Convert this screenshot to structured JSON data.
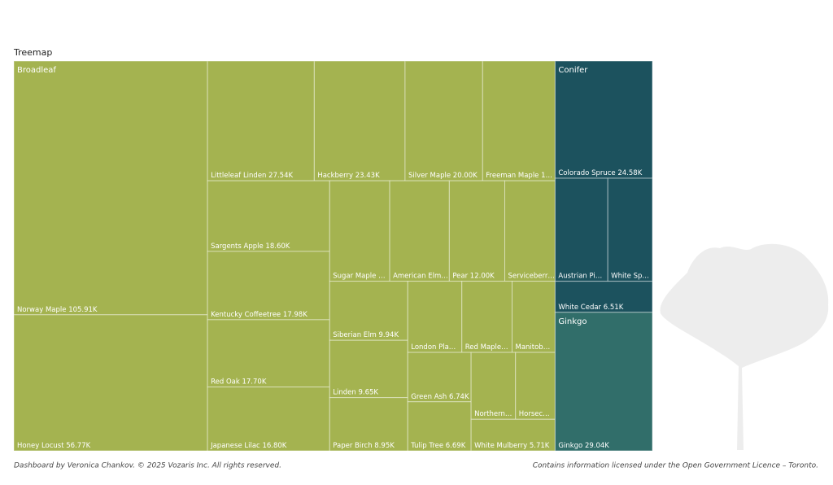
{
  "chart_data": {
    "type": "treemap",
    "title": "Treemap",
    "groups": [
      {
        "name": "Broadleaf",
        "color": "#a4b350",
        "children": [
          {
            "name": "Norway Maple",
            "value": 105910,
            "value_label": "105.91K"
          },
          {
            "name": "Honey Locust",
            "value": 56770,
            "value_label": "56.77K"
          },
          {
            "name": "Littleleaf Linden",
            "value": 27540,
            "value_label": "27.54K"
          },
          {
            "name": "Hackberry",
            "value": 23430,
            "value_label": "23.43K"
          },
          {
            "name": "Silver Maple",
            "value": 20000,
            "value_label": "20.00K"
          },
          {
            "name": "Freeman Maple 1…",
            "value": 18700
          },
          {
            "name": "Sargents Apple",
            "value": 18600,
            "value_label": "18.60K"
          },
          {
            "name": "Kentucky Coffeetree",
            "value": 17980,
            "value_label": "17.98K"
          },
          {
            "name": "Red Oak",
            "value": 17700,
            "value_label": "17.70K"
          },
          {
            "name": "Japanese Lilac",
            "value": 16800,
            "value_label": "16.80K"
          },
          {
            "name": "Sugar Maple …",
            "value": 13000
          },
          {
            "name": "American Elm…",
            "value": 12900
          },
          {
            "name": "Pear",
            "value": 12000,
            "value_label": "12.00K"
          },
          {
            "name": "Serviceberr…",
            "value": 10900
          },
          {
            "name": "Siberian Elm",
            "value": 9940,
            "value_label": "9.94K"
          },
          {
            "name": "Linden",
            "value": 9650,
            "value_label": "9.65K"
          },
          {
            "name": "Paper Birch",
            "value": 8950,
            "value_label": "8.95K"
          },
          {
            "name": "London Pla…",
            "value": 8300
          },
          {
            "name": "Red Maple…",
            "value": 7700
          },
          {
            "name": "Manitob…",
            "value": 6600
          },
          {
            "name": "Green Ash",
            "value": 6740,
            "value_label": "6.74K"
          },
          {
            "name": "Tulip Tree",
            "value": 6690,
            "value_label": "6.69K"
          },
          {
            "name": "Northern…",
            "value": 6400
          },
          {
            "name": "Horsec…",
            "value": 5700
          },
          {
            "name": "White Mulberry",
            "value": 5710,
            "value_label": "5.71K"
          }
        ]
      },
      {
        "name": "Conifer",
        "color": "#1c525e",
        "children": [
          {
            "name": "Colorado Spruce",
            "value": 24580,
            "value_label": "24.58K"
          },
          {
            "name": "Austrian Pi…",
            "value": 11700
          },
          {
            "name": "White Sp…",
            "value": 9900
          },
          {
            "name": "White Cedar",
            "value": 6510,
            "value_label": "6.51K"
          }
        ]
      },
      {
        "name": "Ginkgo",
        "color": "#316e6a",
        "children": [
          {
            "name": "Ginkgo",
            "value": 29040,
            "value_label": "29.04K"
          }
        ]
      }
    ]
  },
  "footer_left": "Dashboard by Veronica Chankov. © 2025 Vozaris Inc. All rights reserved.",
  "footer_right": "Contains information licensed under the Open Government Licence – Toronto."
}
